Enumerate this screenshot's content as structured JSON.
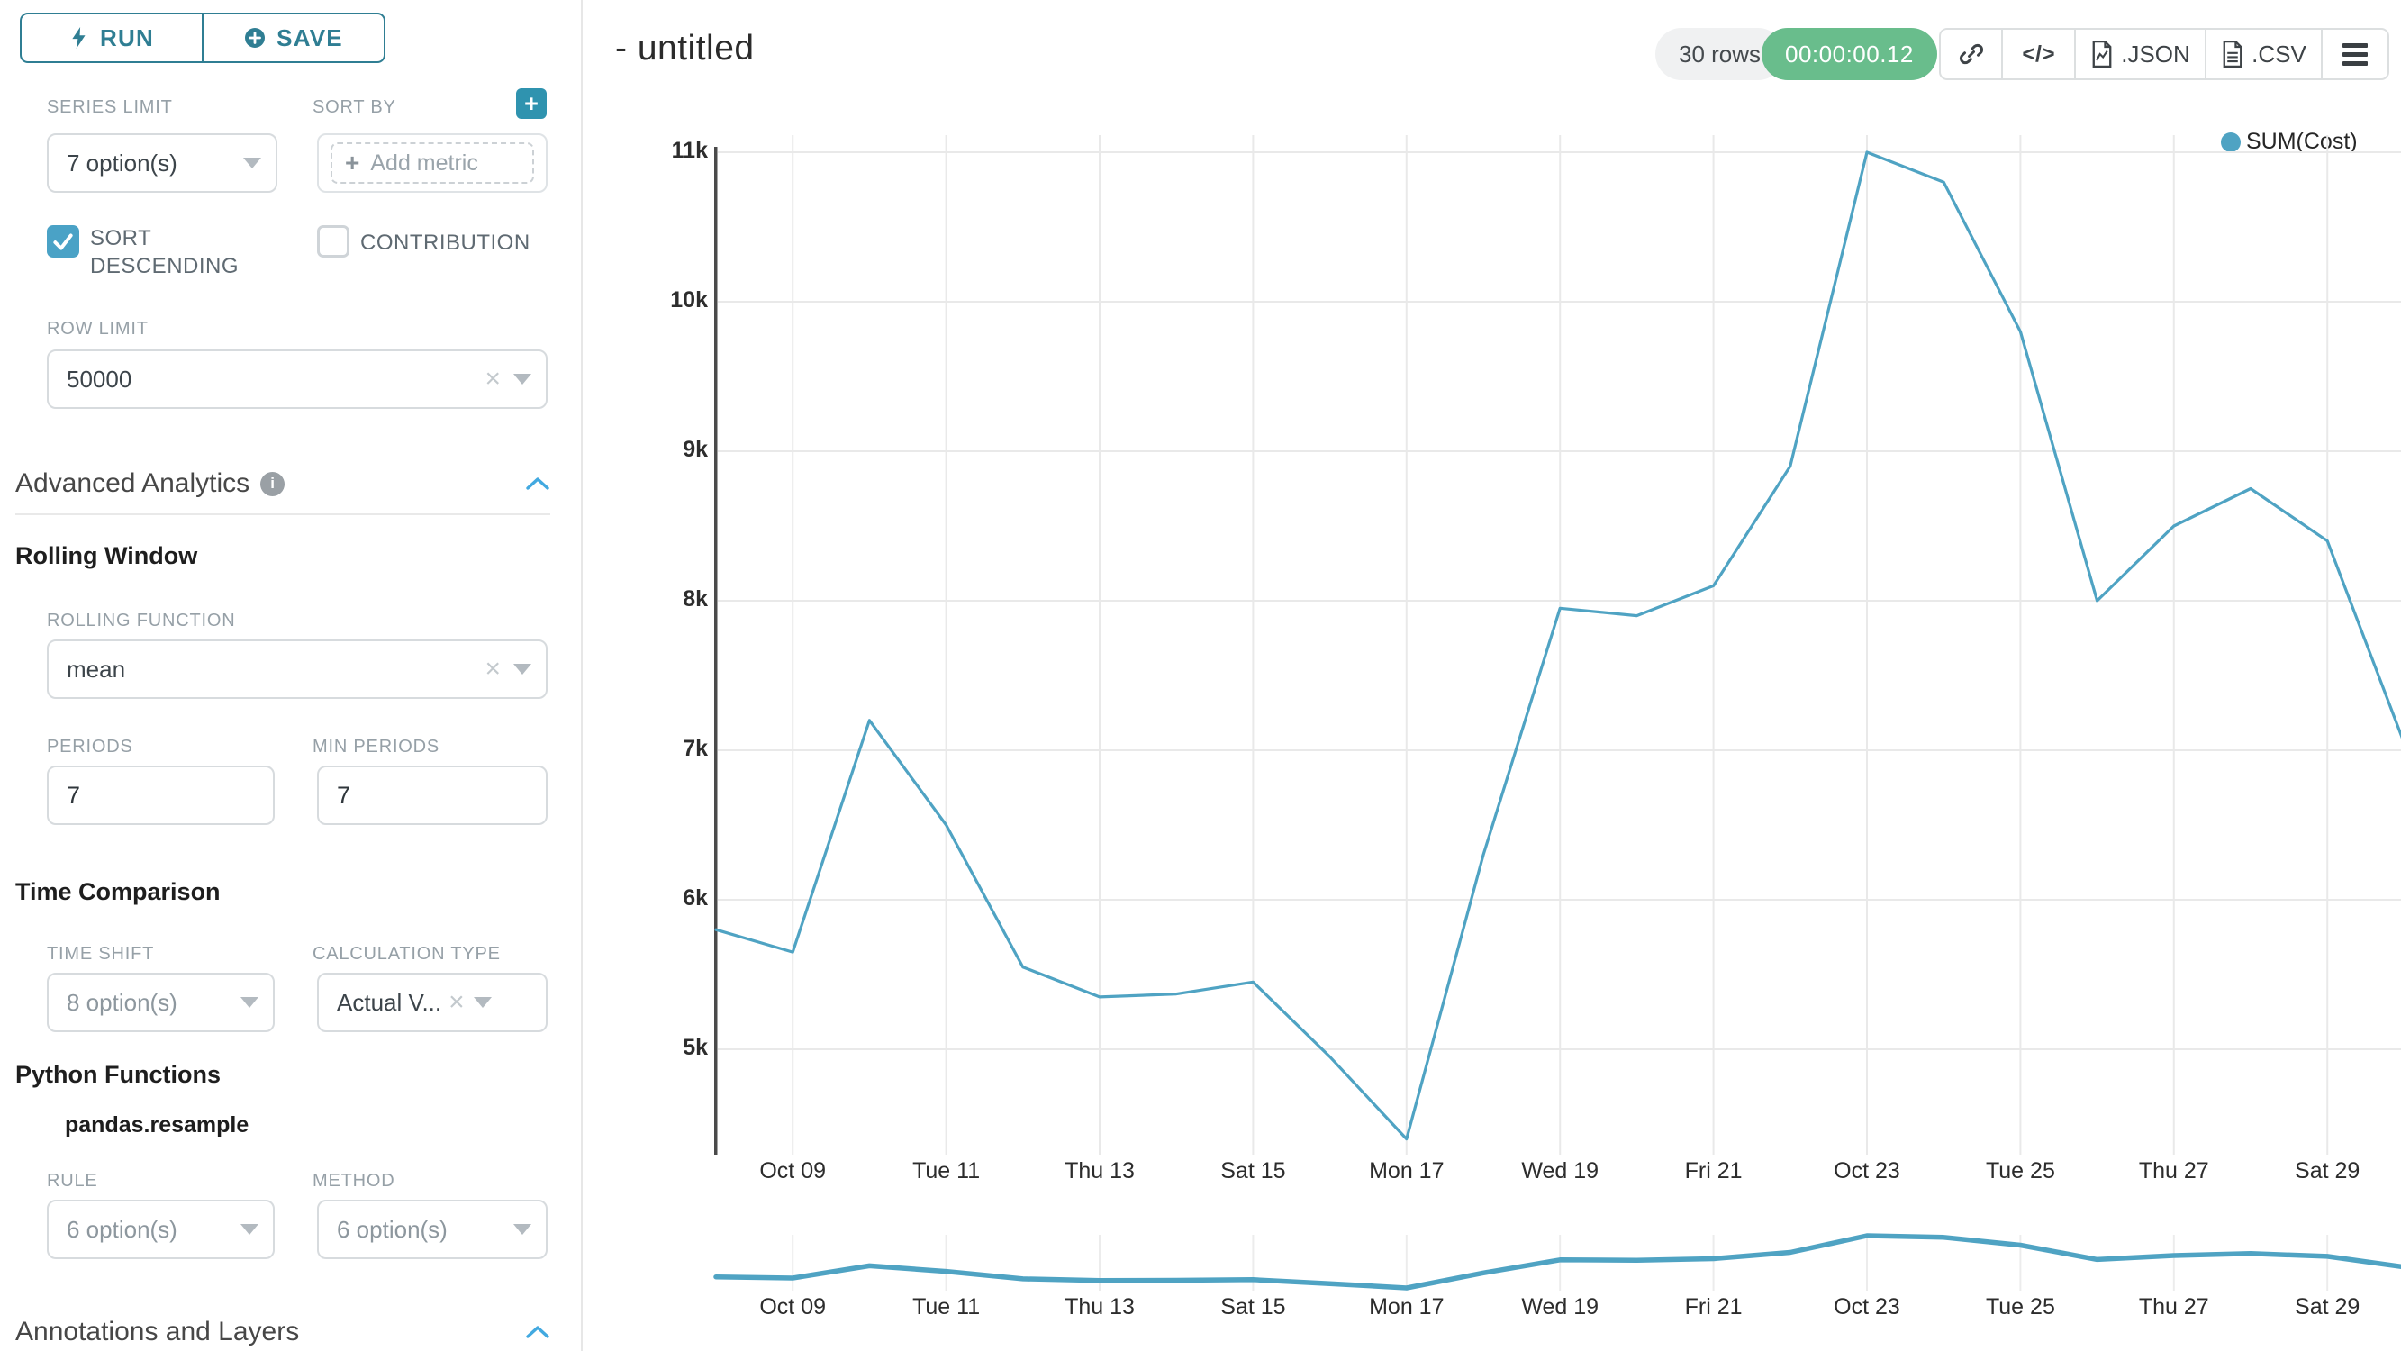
{
  "colors": {
    "accent_teal": "#2f7e93",
    "line": "#4fa3c3",
    "checkbox_blue": "#4aa2c6",
    "caret_blue": "#42a9e0",
    "timer_green": "#69bd8c"
  },
  "icons": {
    "plus": "+",
    "close": "×",
    "code": "</>",
    "info": "i"
  },
  "toolbar": {
    "run_label": "RUN",
    "save_label": "SAVE"
  },
  "sidebar": {
    "series_limit": {
      "label": "SERIES LIMIT",
      "value": "7 option(s)"
    },
    "sort_by": {
      "label": "SORT BY",
      "placeholder": "Add metric"
    },
    "sort_descending": {
      "label": "SORT DESCENDING",
      "checked": true
    },
    "contribution": {
      "label": "CONTRIBUTION",
      "checked": false
    },
    "row_limit": {
      "label": "ROW LIMIT",
      "value": "50000"
    },
    "advanced_analytics": {
      "title": "Advanced Analytics"
    },
    "rolling_window": {
      "title": "Rolling Window",
      "rolling_function": {
        "label": "ROLLING FUNCTION",
        "value": "mean"
      },
      "periods": {
        "label": "PERIODS",
        "value": "7"
      },
      "min_periods": {
        "label": "MIN PERIODS",
        "value": "7"
      }
    },
    "time_comparison": {
      "title": "Time Comparison",
      "time_shift": {
        "label": "TIME SHIFT",
        "value": "8 option(s)"
      },
      "calculation_type": {
        "label": "CALCULATION TYPE",
        "value": "Actual V..."
      }
    },
    "python_functions": {
      "title": "Python Functions",
      "subtitle": "pandas.resample",
      "rule": {
        "label": "RULE",
        "value": "6 option(s)"
      },
      "method": {
        "label": "METHOD",
        "value": "6 option(s)"
      }
    },
    "annotations": {
      "title": "Annotations and Layers"
    }
  },
  "header": {
    "title": "- untitled",
    "rows_badge": "30 rows",
    "timer": "00:00:00.12",
    "export_json": ".JSON",
    "export_csv": ".CSV"
  },
  "chart_data": {
    "type": "line",
    "title": "- untitled",
    "legend": [
      {
        "name": "SUM(Cost)",
        "color": "#4fa3c3"
      }
    ],
    "legend_position": "top-right",
    "grid": true,
    "x": [
      "Oct 08",
      "Oct 09",
      "Oct 10",
      "Oct 11",
      "Oct 12",
      "Oct 13",
      "Oct 14",
      "Oct 15",
      "Oct 16",
      "Oct 17",
      "Oct 18",
      "Oct 19",
      "Oct 20",
      "Oct 21",
      "Oct 22",
      "Oct 23",
      "Oct 24",
      "Oct 25",
      "Oct 26",
      "Oct 27",
      "Oct 28",
      "Oct 29",
      "Oct 30"
    ],
    "series": [
      {
        "name": "SUM(Cost)",
        "values": [
          5800,
          5650,
          7200,
          6500,
          5550,
          5350,
          5370,
          5450,
          4950,
          4400,
          6300,
          7950,
          7900,
          8100,
          8900,
          11000,
          10800,
          9800,
          8000,
          8500,
          8750,
          8400,
          7050
        ]
      }
    ],
    "x_tick_labels": [
      "Oct 09",
      "Tue 11",
      "Thu 13",
      "Sat 15",
      "Mon 17",
      "Wed 19",
      "Fri 21",
      "Oct 23",
      "Tue 25",
      "Thu 27",
      "Sat 29"
    ],
    "x_tick_indices": [
      1,
      3,
      5,
      7,
      9,
      11,
      13,
      15,
      17,
      19,
      21
    ],
    "y_tick_labels": [
      "11k",
      "10k",
      "9k",
      "8k",
      "7k",
      "6k",
      "5k"
    ],
    "y_tick_values": [
      11000,
      10000,
      9000,
      8000,
      7000,
      6000,
      5000
    ],
    "ylim": [
      4250,
      11100
    ],
    "has_preview_strip": true
  }
}
